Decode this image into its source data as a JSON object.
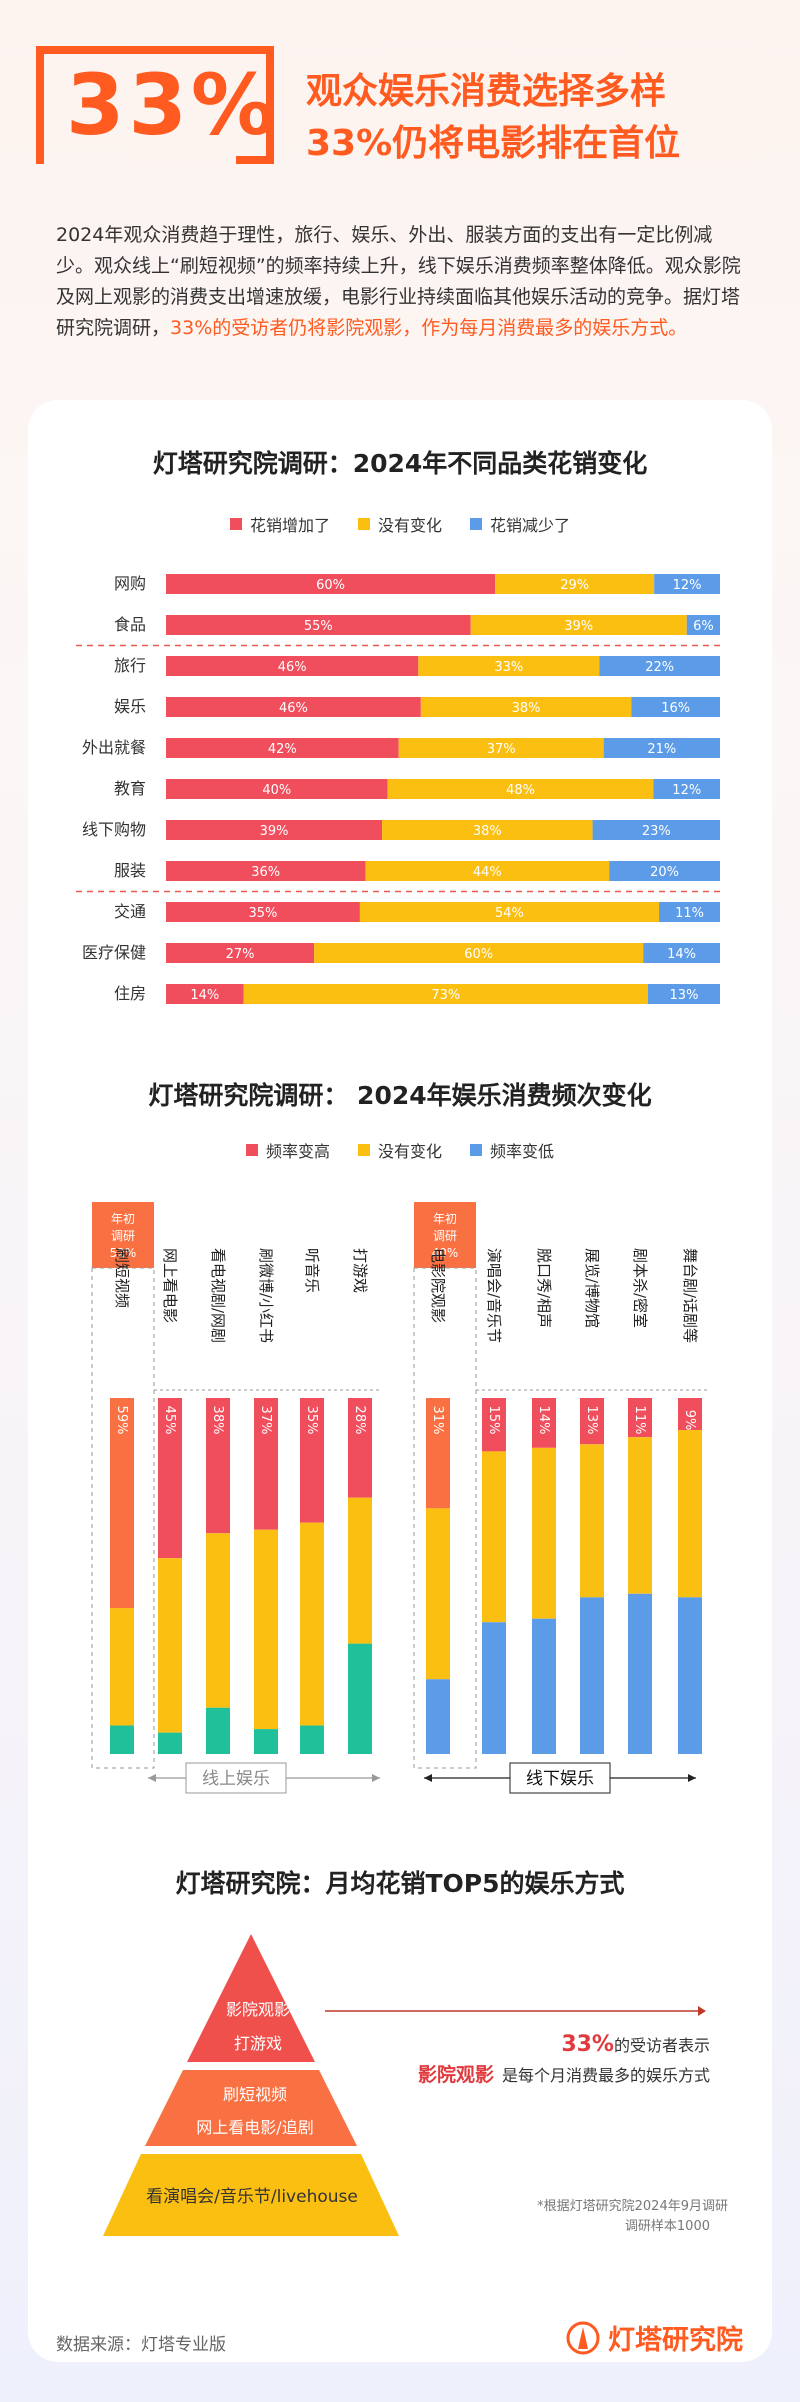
{
  "header": {
    "big_number": "33%",
    "headline_1": "观众娱乐消费选择多样",
    "headline_2": "33%仍将电影排在首位",
    "intro_text": "2024年观众消费趋于理性，旅行、娱乐、外出、服装方面的支出有一定比例减少。观众线上“刷短视频”的频率持续上升，线下娱乐消费频率整体降低。观众影院及网上观影的消费支出增速放缓，电影行业持续面临其他娱乐活动的竞争。据灯塔研究院调研，",
    "intro_highlight": "33%的受访者仍将影院观影，作为每月消费最多的娱乐方式。"
  },
  "colors": {
    "orange": "#ff5a1f",
    "red": "#f04e5c",
    "yellow": "#fbbf12",
    "blue": "#5b9be8",
    "teal": "#20c09a",
    "coral": "#f97042"
  },
  "chart_data": [
    {
      "type": "bar",
      "orientation": "horizontal-stacked-100",
      "title": "灯塔研究院调研：2024年不同品类花销变化",
      "categories": [
        "网购",
        "食品",
        "旅行",
        "娱乐",
        "外出就餐",
        "教育",
        "线下购物",
        "服装",
        "交通",
        "医疗保健",
        "住房"
      ],
      "series": [
        {
          "name": "花销增加了",
          "color": "#f04e5c",
          "values": [
            60,
            55,
            46,
            46,
            42,
            40,
            39,
            36,
            35,
            27,
            14
          ]
        },
        {
          "name": "没有变化",
          "color": "#fbbf12",
          "values": [
            29,
            39,
            33,
            38,
            37,
            48,
            38,
            44,
            54,
            60,
            73
          ]
        },
        {
          "name": "花销减少了",
          "color": "#5b9be8",
          "values": [
            12,
            6,
            22,
            16,
            21,
            12,
            23,
            20,
            11,
            14,
            13
          ]
        }
      ],
      "group_breaks_after": [
        1,
        7
      ]
    },
    {
      "type": "bar",
      "orientation": "vertical-stacked-100",
      "title": "灯塔研究院调研： 2024年娱乐消费频次变化",
      "legend": [
        "频率变高",
        "没有变化",
        "频率变低"
      ],
      "groups": [
        {
          "label": "线上娱乐",
          "badge": [
            "年初",
            "调研",
            "52%"
          ],
          "categories": [
            "刷短视频",
            "网上看电影",
            "看电视剧/网剧",
            "刷微博/小红书",
            "听音乐",
            "打游戏"
          ],
          "higher": [
            59,
            45,
            38,
            37,
            35,
            28
          ],
          "same": [
            33,
            49,
            49,
            56,
            57,
            41
          ],
          "lower": [
            8,
            6,
            13,
            7,
            8,
            31
          ]
        },
        {
          "label": "线下娱乐",
          "badge": [
            "年初",
            "调研",
            "40%"
          ],
          "categories": [
            "电影院观影",
            "演唱会/音乐节",
            "脱口秀/相声",
            "展览/博物馆",
            "剧本杀/密室",
            "舞台剧/话剧等"
          ],
          "higher": [
            31,
            15,
            14,
            13,
            11,
            9
          ],
          "same": [
            48,
            48,
            48,
            43,
            44,
            47
          ],
          "lower": [
            21,
            37,
            38,
            44,
            45,
            44
          ]
        }
      ]
    }
  ],
  "top5": {
    "title": "灯塔研究院：月均花销TOP5的娱乐方式",
    "tier1": [
      "影院观影",
      "打游戏"
    ],
    "tier2": [
      "刷短视频",
      "网上看电影/追剧"
    ],
    "tier3": [
      "看演唱会/音乐节/livehouse"
    ],
    "callout_pct": "33%",
    "callout_text_1": "的受访者表示",
    "callout_strong": "影院观影",
    "callout_text_2": "是每个月消费最多的娱乐方式",
    "note_1": "*根据灯塔研究院2024年9月调研",
    "note_2": "调研样本1000"
  },
  "footer": {
    "source": "数据来源：灯塔专业版",
    "logo": "灯塔研究院"
  }
}
